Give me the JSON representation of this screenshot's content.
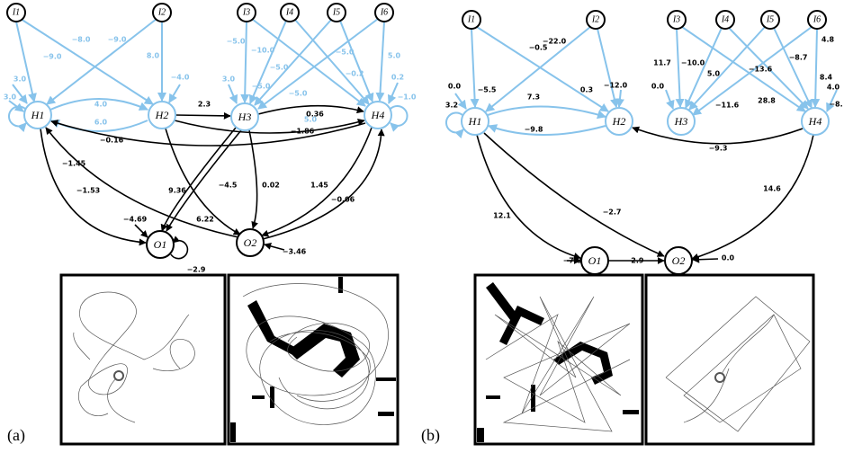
{
  "panels": [
    {
      "label": "(a)",
      "nodes": [
        "I1",
        "I2",
        "I3",
        "I4",
        "I5",
        "I6",
        "H1",
        "H2",
        "H3",
        "H4",
        "O1",
        "O2"
      ],
      "weights": [
        "−9.0",
        "−8.0",
        "−9.0",
        "8.0",
        "−4.0",
        "3.0",
        "3.0",
        "4.0",
        "6.0",
        "−5.0",
        "−10.0",
        "−5.0",
        "−5.0",
        "5.0",
        "−5.0",
        "−0.2",
        "5.0",
        "0.2",
        "−1.0",
        "3.0",
        "−5.0",
        "2.3",
        "0.36",
        "−1.86",
        "−0.16",
        "−1.45",
        "−1.53",
        "9.36",
        "−4.5",
        "0.02",
        "1.45",
        "−0.06",
        "6.22",
        "−4.69",
        "−3.46",
        "−2.9"
      ]
    },
    {
      "label": "(b)",
      "nodes": [
        "I1",
        "I2",
        "I3",
        "I4",
        "I5",
        "I6",
        "H1",
        "H2",
        "H3",
        "H4",
        "O1",
        "O2"
      ],
      "weights": [
        "−5.5",
        "−0.5",
        "−22.0",
        "0.3",
        "−12.0",
        "0.0",
        "3.2",
        "7.3",
        "−9.8",
        "11.7",
        "−10.0",
        "5.0",
        "−13.6",
        "−8.7",
        "4.8",
        "0.0",
        "−11.6",
        "28.8",
        "8.4",
        "4.0",
        "−8.",
        "−9.3",
        "14.6",
        "12.1",
        "−2.7",
        "−7.8",
        "−2.9",
        "0.0"
      ]
    }
  ]
}
